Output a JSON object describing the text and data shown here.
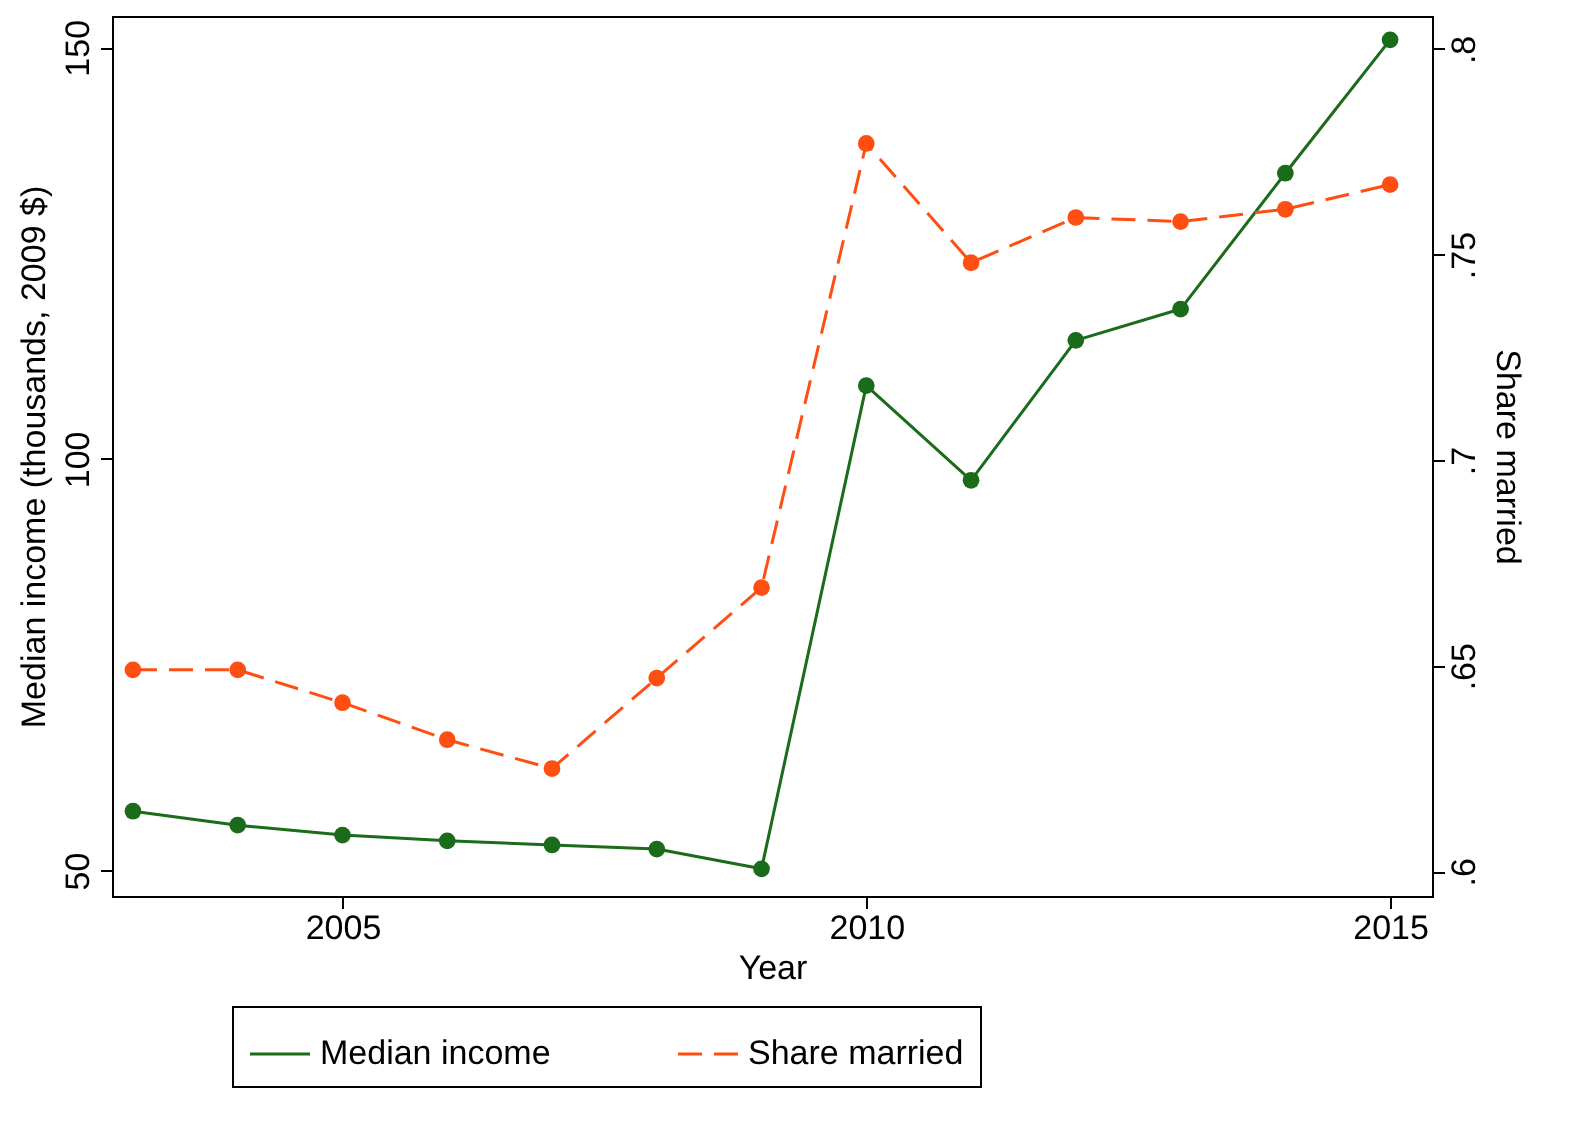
{
  "chart_data": {
    "type": "line",
    "xlabel": "Year",
    "ylabel": "Median income (thousands, 2009 $)",
    "y2label": "Share married",
    "x": [
      2003,
      2004,
      2005,
      2006,
      2007,
      2008,
      2009,
      2010,
      2011,
      2012,
      2013,
      2014,
      2015
    ],
    "series": [
      {
        "name": "Median income",
        "color": "#1a6b1a",
        "line_style": "solid",
        "values": [
          57.2,
          55.5,
          54.3,
          53.6,
          53.1,
          52.6,
          50.2,
          108.9,
          97.4,
          114.4,
          118.2,
          134.7,
          150.9
        ]
      },
      {
        "name": "Share married",
        "color": "#ff4e12",
        "line_style": "dashed",
        "axis": "y2",
        "values": [
          0.649,
          0.649,
          0.641,
          0.632,
          0.625,
          0.647,
          0.669,
          0.777,
          0.748,
          0.759,
          0.758,
          0.761,
          0.767
        ]
      }
    ],
    "xlim": [
      2002.8,
      2015.4
    ],
    "xticks": [
      2005,
      2010,
      2015
    ],
    "ylim": [
      46.9,
      153.8
    ],
    "yticks": [
      50,
      100,
      150
    ],
    "y2lim": [
      0.594,
      0.808
    ],
    "y2ticks": [
      {
        "value": 0.6,
        "label": ".6"
      },
      {
        "value": 0.65,
        "label": ".65"
      },
      {
        "value": 0.7,
        "label": ".7"
      },
      {
        "value": 0.75,
        "label": ".75"
      },
      {
        "value": 0.8,
        "label": ".8"
      }
    ],
    "grid": false,
    "legend": "bottom",
    "marker": "circle"
  }
}
